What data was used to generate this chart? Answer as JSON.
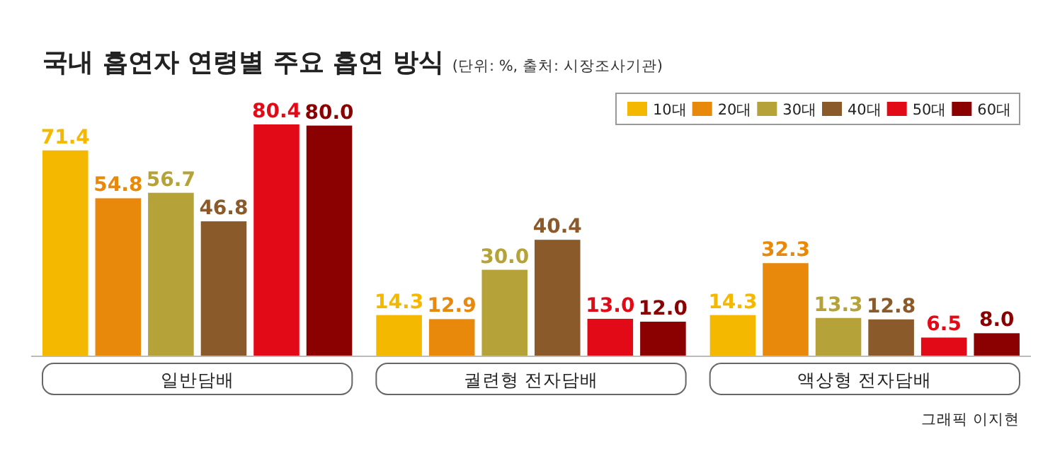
{
  "chart_data": {
    "type": "bar",
    "title": "국내 흡연자 연령별 주요 흡연 방식",
    "subtitle": "(단위: %, 출처: 시장조사기관)",
    "categories": [
      "일반담배",
      "궐련형 전자담배",
      "액상형 전자담배"
    ],
    "series": [
      {
        "name": "10대",
        "color": "#f5b800",
        "values": [
          71.4,
          14.3,
          14.3
        ],
        "value_labels": [
          "71.4",
          "14.3",
          "14.3"
        ]
      },
      {
        "name": "20대",
        "color": "#e8890c",
        "values": [
          54.8,
          12.9,
          32.3
        ],
        "value_labels": [
          "54.8",
          "12.9",
          "32.3"
        ]
      },
      {
        "name": "30대",
        "color": "#b5a33a",
        "values": [
          56.7,
          30.0,
          13.3
        ],
        "value_labels": [
          "56.7",
          "30.0",
          "13.3"
        ]
      },
      {
        "name": "40대",
        "color": "#8b5a2b",
        "values": [
          46.8,
          40.4,
          12.8
        ],
        "value_labels": [
          "46.8",
          "40.4",
          "12.8"
        ]
      },
      {
        "name": "50대",
        "color": "#e30a17",
        "values": [
          80.4,
          13.0,
          6.5
        ],
        "value_labels": [
          "80.4",
          "13.0",
          "6.5"
        ]
      },
      {
        "name": "60대",
        "color": "#8b0000",
        "values": [
          80.0,
          12.0,
          8.0
        ],
        "value_labels": [
          "80.0",
          "12.0",
          "8.0"
        ]
      }
    ],
    "legend": "top right",
    "annotations": [
      "그래픽 이지현"
    ]
  }
}
